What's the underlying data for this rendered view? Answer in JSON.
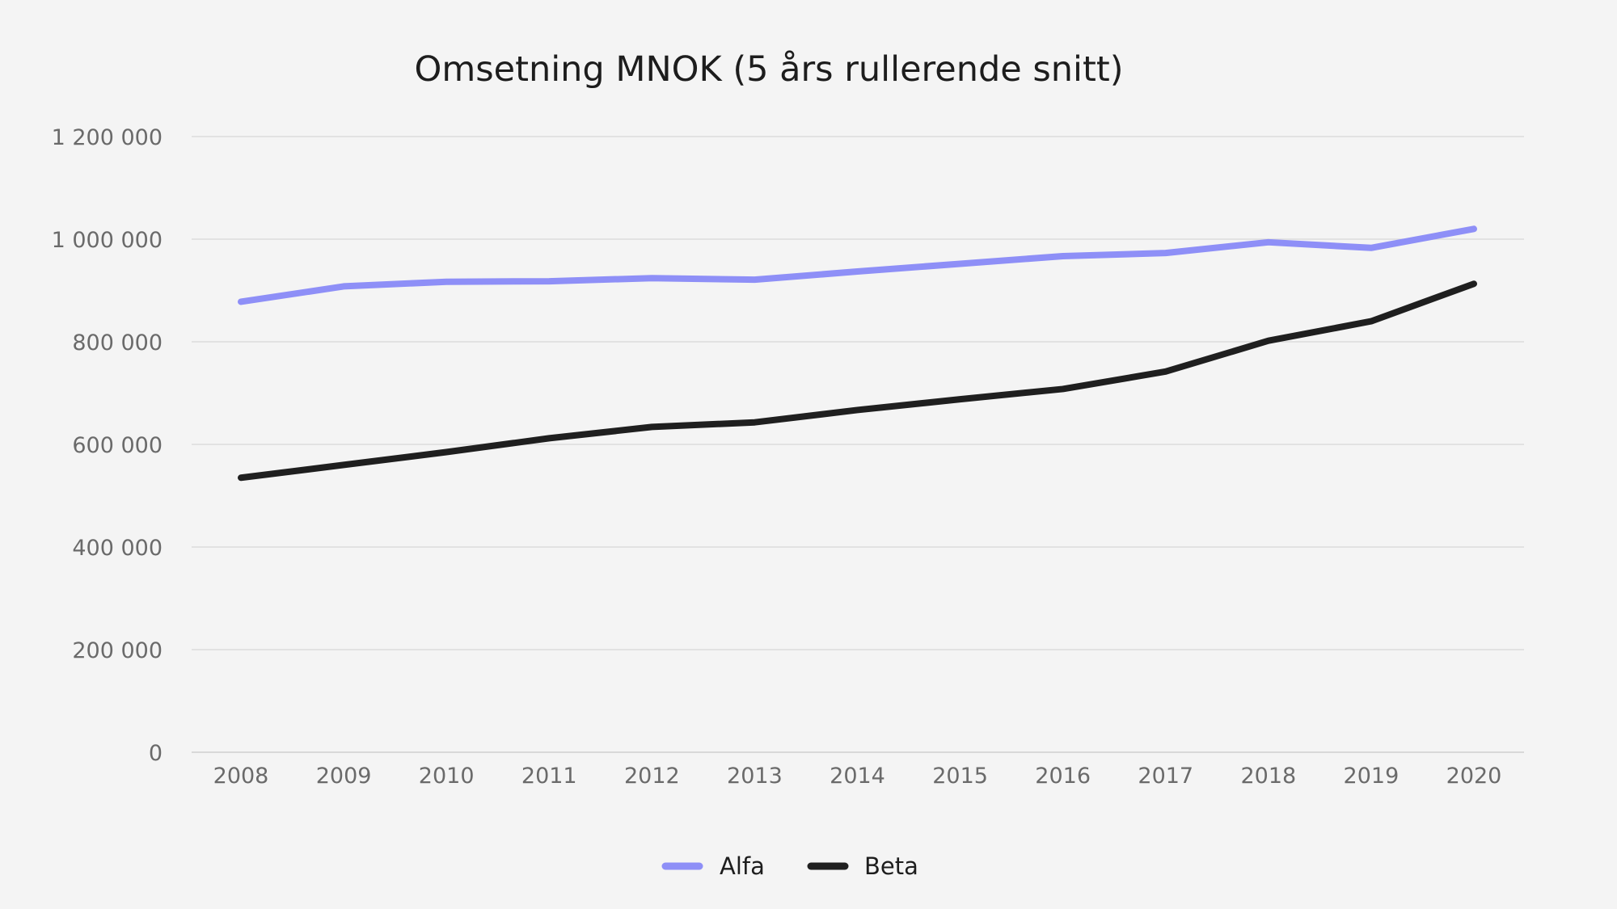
{
  "chart_data": {
    "type": "line",
    "title": "Omsetning MNOK (5 års rullerende snitt)",
    "xlabel": "",
    "ylabel": "",
    "categories": [
      "2008",
      "2009",
      "2010",
      "2011",
      "2012",
      "2013",
      "2014",
      "2015",
      "2016",
      "2017",
      "2018",
      "2019",
      "2020"
    ],
    "ylim": [
      0,
      1200000
    ],
    "yticks": [
      0,
      200000,
      400000,
      600000,
      800000,
      1000000,
      1200000
    ],
    "ytick_labels": [
      "0",
      "200 000",
      "400 000",
      "600 000",
      "800 000",
      "1 000 000",
      "1 200 000"
    ],
    "grid": true,
    "legend_position": "bottom",
    "series": [
      {
        "name": "Alfa",
        "color": "#8e8ff7",
        "values": [
          878000,
          908000,
          917000,
          918000,
          924000,
          921000,
          937000,
          952000,
          967000,
          973000,
          994000,
          983000,
          1020000
        ]
      },
      {
        "name": "Beta",
        "color": "#1f1f1f",
        "values": [
          535000,
          560000,
          585000,
          612000,
          634000,
          643000,
          667000,
          688000,
          708000,
          742000,
          802000,
          840000,
          913000
        ]
      }
    ]
  }
}
